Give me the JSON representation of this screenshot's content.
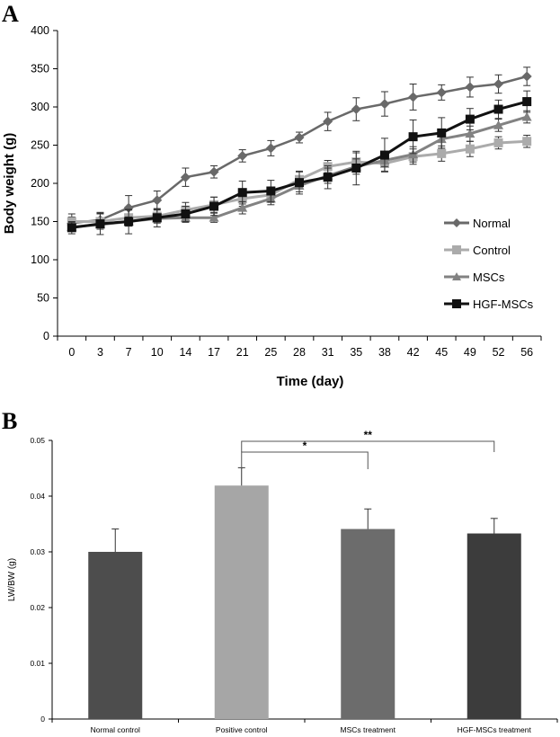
{
  "panels": {
    "a_letter": "A",
    "b_letter": "B"
  },
  "chart_data": [
    {
      "type": "line",
      "title": "",
      "xlabel": "Time (day)",
      "ylabel": "Body weight (g)",
      "ylim": [
        0,
        400
      ],
      "yticks": [
        0,
        50,
        100,
        150,
        200,
        250,
        300,
        350,
        400
      ],
      "categories": [
        "0",
        "3",
        "7",
        "10",
        "14",
        "17",
        "21",
        "25",
        "28",
        "31",
        "35",
        "38",
        "42",
        "45",
        "49",
        "52",
        "56"
      ],
      "grid": false,
      "legend_position": "right",
      "error_bars": true,
      "series": [
        {
          "name": "Normal",
          "color": "#696969",
          "marker": "diamond",
          "values": [
            148,
            152,
            168,
            178,
            208,
            215,
            236,
            246,
            260,
            281,
            297,
            304,
            313,
            319,
            326,
            330,
            340
          ],
          "errors": [
            8,
            10,
            16,
            12,
            12,
            8,
            8,
            10,
            7,
            12,
            15,
            16,
            17,
            10,
            13,
            12,
            12
          ]
        },
        {
          "name": "Control",
          "color": "#ababab",
          "marker": "square",
          "values": [
            150,
            150,
            155,
            157,
            165,
            172,
            180,
            185,
            205,
            222,
            228,
            226,
            235,
            239,
            245,
            253,
            255
          ],
          "errors": [
            10,
            10,
            10,
            8,
            10,
            10,
            10,
            10,
            10,
            8,
            12,
            10,
            10,
            10,
            10,
            8,
            8
          ]
        },
        {
          "name": "MSCs",
          "color": "#828282",
          "marker": "triangle",
          "values": [
            143,
            146,
            150,
            154,
            155,
            155,
            168,
            180,
            197,
            210,
            222,
            230,
            238,
            258,
            265,
            276,
            287
          ],
          "errors": [
            6,
            6,
            6,
            6,
            6,
            6,
            8,
            8,
            8,
            10,
            10,
            8,
            10,
            12,
            10,
            8,
            8
          ]
        },
        {
          "name": "HGF-MSCs",
          "color": "#111111",
          "marker": "square",
          "values": [
            142,
            147,
            150,
            155,
            160,
            170,
            188,
            190,
            201,
            208,
            220,
            237,
            261,
            266,
            284,
            297,
            307
          ],
          "errors": [
            8,
            14,
            16,
            12,
            10,
            12,
            15,
            14,
            15,
            15,
            22,
            22,
            22,
            20,
            14,
            12,
            14
          ]
        }
      ]
    },
    {
      "type": "bar",
      "title": "",
      "xlabel": "",
      "ylabel": "LW/BW (g)",
      "ylim": [
        0,
        0.05
      ],
      "yticks": [
        "0",
        "0.01",
        "0.02",
        "0.03",
        "0.04",
        "0.05"
      ],
      "categories": [
        "Normal control",
        "Positive control",
        "MSCs treatment",
        "HGF-MSCs treatment"
      ],
      "values": [
        0.03,
        0.0419,
        0.0341,
        0.0333
      ],
      "errors": [
        0.0041,
        0.0032,
        0.0036,
        0.0027
      ],
      "colors": [
        "#4d4d4d",
        "#a6a6a6",
        "#6c6c6c",
        "#3c3c3c"
      ],
      "grid": false,
      "annotations": [
        {
          "from": "Positive control",
          "to": "MSCs treatment",
          "label": "*"
        },
        {
          "from": "Positive control",
          "to": "HGF-MSCs treatment",
          "label": "**"
        }
      ]
    }
  ]
}
